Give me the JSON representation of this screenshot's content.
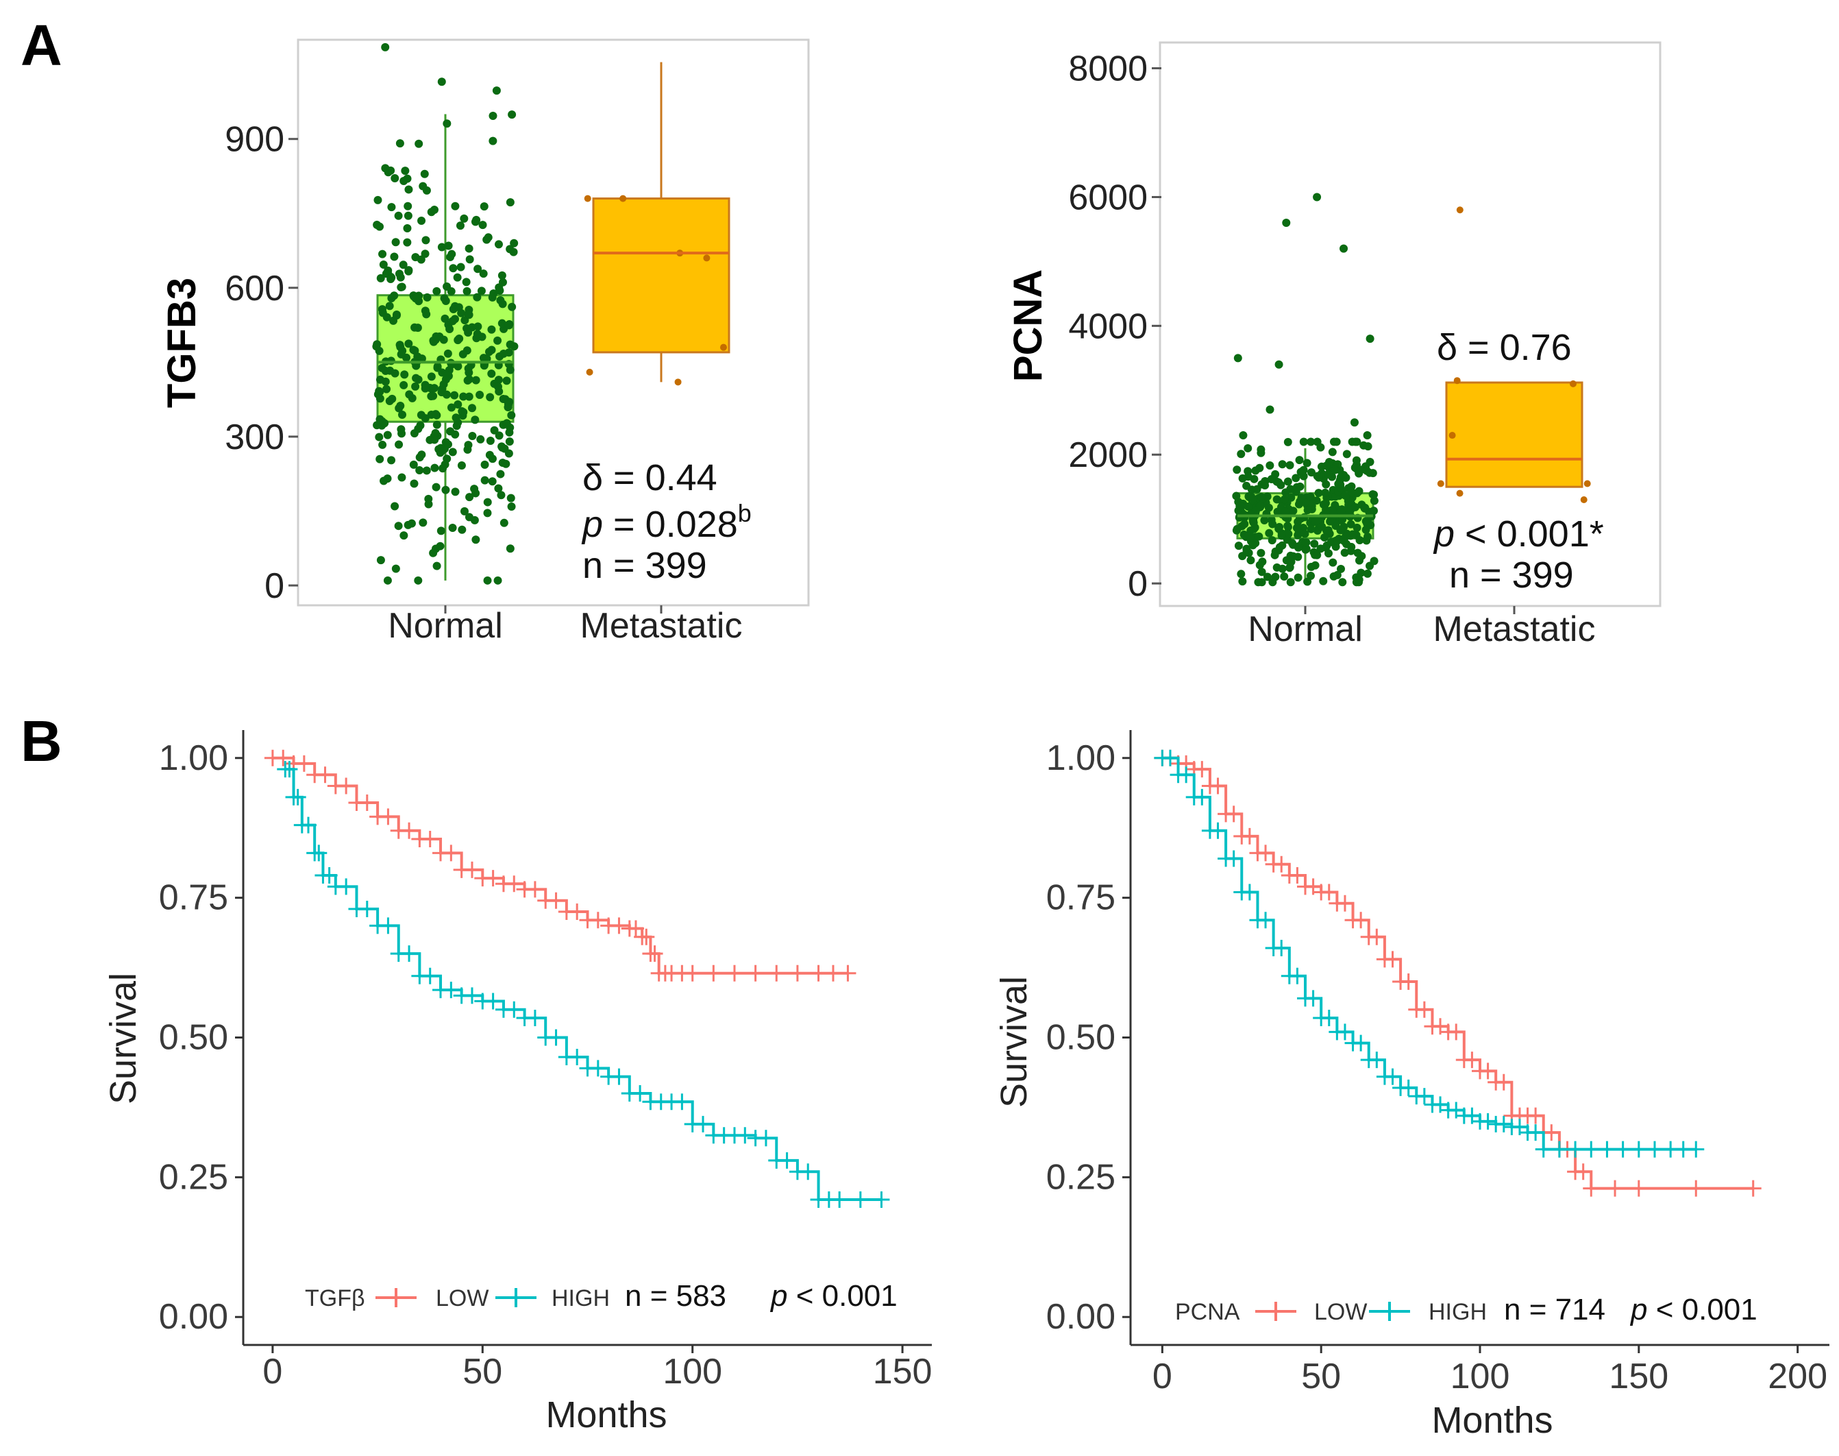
{
  "panel_labels": {
    "A": "A",
    "B": "B"
  },
  "colors": {
    "normal_fill": "#adff5a",
    "normal_stroke": "#3f9b2c",
    "normal_point": "#0b6b12",
    "metastatic_fill": "#ffc000",
    "metastatic_stroke": "#c9781d",
    "metastatic_point": "#c46d00",
    "median_line": "#e06a1a",
    "low_color": "#f8766d",
    "high_color": "#00bfc4"
  },
  "chart_data": [
    {
      "id": "tgfb3_box",
      "type": "box",
      "ylabel": "TGFB3",
      "categories": [
        "Normal",
        "Metastatic"
      ],
      "yticks": [
        0,
        300,
        600,
        900
      ],
      "ylim": [
        -40,
        1100
      ],
      "boxes": [
        {
          "name": "Normal",
          "q1": 330,
          "median": 450,
          "q3": 585,
          "whisker_low": 10,
          "whisker_high": 950,
          "n_points": 380,
          "point_min": 10,
          "point_max": 1085
        },
        {
          "name": "Metastatic",
          "q1": 470,
          "median": 670,
          "q3": 780,
          "whisker_low": 410,
          "whisker_high": 1055,
          "points": [
            430,
            410,
            480,
            660,
            670,
            780,
            780
          ]
        }
      ],
      "annotations": {
        "delta": "δ = 0.44",
        "p_prefix": "p",
        "p_rest": " = 0.028",
        "p_sup": "b",
        "n": "n = 399"
      }
    },
    {
      "id": "pcna_box",
      "type": "box",
      "ylabel": "PCNA",
      "categories": [
        "Normal",
        "Metastatic"
      ],
      "yticks": [
        0,
        2000,
        4000,
        6000,
        8000
      ],
      "ylim": [
        -350,
        8400
      ],
      "boxes": [
        {
          "name": "Normal",
          "q1": 700,
          "median": 1050,
          "q3": 1400,
          "whisker_low": 20,
          "whisker_high": 2100,
          "n_points": 380,
          "point_min": 20,
          "point_max": 2200,
          "outliers": [
            6000,
            5600,
            5200,
            3800,
            3500,
            3400,
            2700,
            2500,
            2300,
            2300
          ]
        },
        {
          "name": "Metastatic",
          "q1": 1500,
          "median": 1930,
          "q3": 3120,
          "whisker_low": 1500,
          "whisker_high": 3120,
          "points": [
            5800,
            3150,
            3100,
            2300,
            1400,
            1300,
            1550,
            1550
          ]
        }
      ],
      "annotations": {
        "delta": "δ = 0.76",
        "p_prefix": "p",
        "p_rest": " < 0.001*",
        "n": "n = 399"
      }
    },
    {
      "id": "tgfb_km",
      "type": "line",
      "subtype": "kaplan-meier",
      "ylabel": "Survival",
      "xlabel": "Months",
      "xticks": [
        0,
        50,
        100,
        150
      ],
      "yticks": [
        "0.00",
        "0.25",
        "0.50",
        "0.75",
        "1.00"
      ],
      "xlim": [
        -7,
        157
      ],
      "ylim": [
        -0.05,
        1.05
      ],
      "series": [
        {
          "name": "LOW",
          "x": [
            0,
            5,
            10,
            15,
            20,
            25,
            30,
            35,
            40,
            45,
            50,
            55,
            60,
            65,
            70,
            75,
            80,
            85,
            88,
            90,
            92,
            95,
            100,
            110,
            120,
            130,
            137
          ],
          "y": [
            1.0,
            0.99,
            0.97,
            0.95,
            0.92,
            0.895,
            0.87,
            0.855,
            0.83,
            0.8,
            0.785,
            0.775,
            0.765,
            0.745,
            0.725,
            0.71,
            0.7,
            0.695,
            0.68,
            0.65,
            0.615,
            0.615,
            0.615,
            0.615,
            0.615,
            0.615,
            0.615
          ]
        },
        {
          "name": "HIGH",
          "x": [
            3,
            5,
            7,
            10,
            12,
            15,
            20,
            25,
            30,
            35,
            40,
            45,
            50,
            55,
            60,
            65,
            70,
            75,
            80,
            85,
            90,
            95,
            100,
            105,
            110,
            115,
            120,
            125,
            130,
            135,
            145
          ],
          "y": [
            0.98,
            0.93,
            0.88,
            0.83,
            0.79,
            0.77,
            0.73,
            0.7,
            0.65,
            0.61,
            0.585,
            0.575,
            0.565,
            0.55,
            0.535,
            0.5,
            0.465,
            0.445,
            0.43,
            0.4,
            0.385,
            0.385,
            0.345,
            0.325,
            0.325,
            0.32,
            0.28,
            0.26,
            0.21,
            0.21,
            0.21
          ]
        }
      ],
      "legend": {
        "title": "TGFβ",
        "entries": [
          "LOW",
          "HIGH"
        ],
        "n": "n = 583",
        "p_prefix": "p",
        "p_rest": " < 0.001"
      }
    },
    {
      "id": "pcna_km",
      "type": "line",
      "subtype": "kaplan-meier",
      "ylabel": "Survival",
      "xlabel": "Months",
      "xticks": [
        0,
        50,
        100,
        150,
        200
      ],
      "yticks": [
        "0.00",
        "0.25",
        "0.50",
        "0.75",
        "1.00"
      ],
      "xlim": [
        -10,
        210
      ],
      "ylim": [
        -0.05,
        1.05
      ],
      "series": [
        {
          "name": "LOW",
          "x": [
            0,
            5,
            10,
            15,
            20,
            25,
            30,
            35,
            40,
            45,
            50,
            55,
            60,
            65,
            70,
            75,
            80,
            85,
            90,
            95,
            100,
            105,
            110,
            115,
            120,
            125,
            130,
            135,
            150,
            186
          ],
          "y": [
            1.0,
            0.99,
            0.98,
            0.95,
            0.9,
            0.86,
            0.83,
            0.81,
            0.79,
            0.77,
            0.76,
            0.74,
            0.71,
            0.68,
            0.64,
            0.6,
            0.55,
            0.52,
            0.51,
            0.46,
            0.44,
            0.42,
            0.36,
            0.36,
            0.33,
            0.3,
            0.26,
            0.23,
            0.23,
            0.23
          ]
        },
        {
          "name": "HIGH",
          "x": [
            0,
            5,
            10,
            15,
            20,
            25,
            30,
            35,
            40,
            45,
            50,
            55,
            60,
            65,
            70,
            75,
            80,
            85,
            90,
            95,
            100,
            105,
            110,
            115,
            120,
            130,
            140,
            150,
            160,
            168
          ],
          "y": [
            1.0,
            0.97,
            0.93,
            0.87,
            0.82,
            0.76,
            0.71,
            0.66,
            0.61,
            0.57,
            0.535,
            0.51,
            0.49,
            0.46,
            0.43,
            0.41,
            0.395,
            0.38,
            0.37,
            0.36,
            0.35,
            0.345,
            0.34,
            0.33,
            0.3,
            0.3,
            0.3,
            0.3,
            0.3,
            0.3
          ]
        }
      ],
      "legend": {
        "title": "PCNA",
        "entries": [
          "LOW",
          "HIGH"
        ],
        "n": "n = 714",
        "p_prefix": "p",
        "p_rest": " < 0.001"
      }
    }
  ]
}
